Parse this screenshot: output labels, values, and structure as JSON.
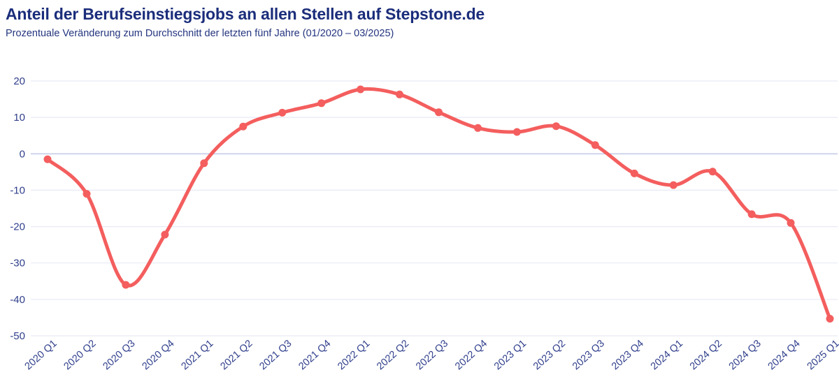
{
  "header": {
    "title": "Anteil der Berufseinstiegsjobs an allen Stellen auf Stepstone.de",
    "subtitle": "Prozentuale Veränderung zum Durchschnitt der letzten fünf Jahre (01/2020 – 03/2025)"
  },
  "chart_data": {
    "type": "line",
    "title": "Anteil der Berufseinstiegsjobs an allen Stellen auf Stepstone.de",
    "subtitle": "Prozentuale Veränderung zum Durchschnitt der letzten fünf Jahre (01/2020 – 03/2025)",
    "categories": [
      "2020 Q1",
      "2020 Q2",
      "2020 Q3",
      "2020 Q4",
      "2021 Q1",
      "2021 Q2",
      "2021 Q3",
      "2021 Q4",
      "2022 Q1",
      "2022 Q2",
      "2022 Q3",
      "2022 Q4",
      "2023 Q1",
      "2023 Q2",
      "2023 Q3",
      "2023 Q4",
      "2024 Q1",
      "2024 Q2",
      "2024 Q3",
      "2024 Q4",
      "2025 Q1"
    ],
    "values": [
      -1.5,
      -11.0,
      -36.0,
      -22.2,
      -2.6,
      7.5,
      11.3,
      13.9,
      17.7,
      16.3,
      11.4,
      7.1,
      6.0,
      7.6,
      2.4,
      -5.4,
      -8.6,
      -4.9,
      -16.6,
      -19.0,
      -45.3
    ],
    "xlabel": "",
    "ylabel": "",
    "ylim": [
      -50,
      20
    ],
    "yticks": [
      20,
      10,
      0,
      -10,
      -20,
      -30,
      -40,
      -50
    ],
    "grid": "horizontal",
    "legend": "none",
    "marker": "filled-circle"
  },
  "style": {
    "background": "#FFFFFF",
    "title_color": "#1B2D7B",
    "subtitle_color": "#24357F",
    "axis_label_color": "#31408D",
    "gridline_color": "#E7E9F5",
    "zero_line_color": "#C5CCE8",
    "line_color": "#F45E5E",
    "marker_color": "#F45E5E"
  }
}
